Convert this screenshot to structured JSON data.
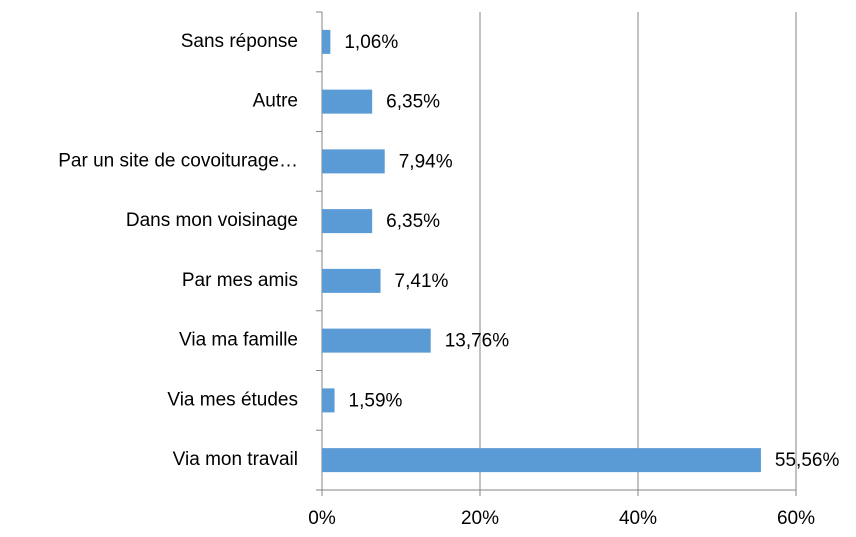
{
  "chart_data": {
    "type": "bar",
    "orientation": "horizontal",
    "categories": [
      "Sans réponse",
      "Autre",
      "Par un site de covoiturage…",
      "Dans mon voisinage",
      "Par mes amis",
      "Via ma famille",
      "Via mes études",
      "Via mon travail"
    ],
    "values": [
      1.06,
      6.35,
      7.94,
      6.35,
      7.41,
      13.76,
      1.59,
      55.56
    ],
    "value_labels": [
      "1,06%",
      "6,35%",
      "7,94%",
      "6,35%",
      "7,41%",
      "13,76%",
      "1,59%",
      "55,56%"
    ],
    "color": "#5b9bd5",
    "xlim": [
      0,
      60
    ],
    "xticks": [
      {
        "value": 0,
        "label": "0%"
      },
      {
        "value": 20,
        "label": "20%"
      },
      {
        "value": 40,
        "label": "40%"
      },
      {
        "value": 60,
        "label": "60%"
      }
    ],
    "grid": true
  }
}
